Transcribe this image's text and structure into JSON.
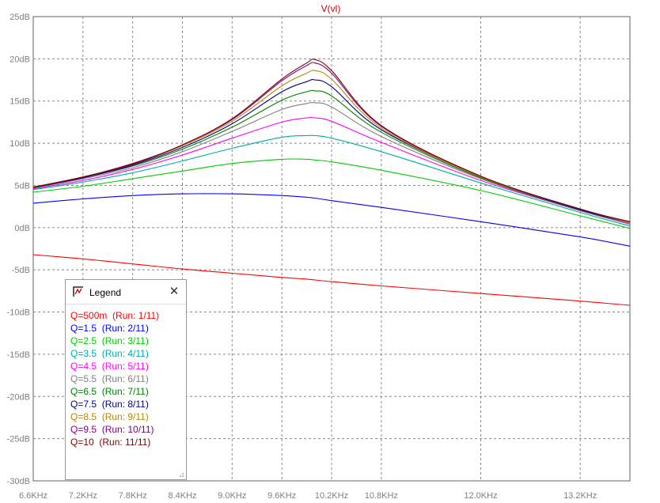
{
  "window_title": "V(vl)",
  "chart_data": {
    "type": "line",
    "title": "V(vl)",
    "xlabel": "",
    "ylabel": "",
    "x_unit": "Hz",
    "y_unit": "dB",
    "xlim": [
      6600,
      13800
    ],
    "ylim": [
      -30,
      25
    ],
    "grid": true,
    "x_ticks": [
      6600,
      7200,
      7800,
      8400,
      9000,
      9600,
      10200,
      10800,
      12000,
      13200
    ],
    "x_tick_labels": [
      "6.6KHz",
      "7.2KHz",
      "7.8KHz",
      "8.4KHz",
      "9.0KHz",
      "9.6KHz",
      "10.2KHz",
      "10.8KHz",
      "12.0KHz",
      "13.2KHz"
    ],
    "y_ticks": [
      25,
      20,
      15,
      10,
      5,
      0,
      -5,
      -10,
      -15,
      -20,
      -25,
      -30
    ],
    "y_tick_labels": [
      "25dB",
      "20dB",
      "15dB",
      "10dB",
      "5dB",
      "0dB",
      "-5dB",
      "-10dB",
      "-15dB",
      "-20dB",
      "-25dB",
      "-30dB"
    ],
    "x": [
      6600,
      7200,
      7800,
      8400,
      9000,
      9600,
      9900,
      10000,
      10200,
      10800,
      12000,
      13200,
      13800
    ],
    "series": [
      {
        "name": "Q=500m",
        "run": "(Run: 1/11)",
        "color": "#ff0000",
        "values": [
          -3.2,
          -3.7,
          -4.3,
          -4.9,
          -5.4,
          -5.9,
          -6.1,
          -6.2,
          -6.4,
          -6.9,
          -7.8,
          -8.7,
          -9.2
        ]
      },
      {
        "name": "Q=1.5",
        "run": "(Run: 2/11)",
        "color": "#0000ff",
        "values": [
          2.9,
          3.4,
          3.8,
          4.0,
          4.0,
          3.8,
          3.6,
          3.5,
          3.2,
          2.4,
          0.7,
          -1.1,
          -2.2
        ]
      },
      {
        "name": "Q=2.5",
        "run": "(Run: 3/11)",
        "color": "#00cc00",
        "values": [
          4.2,
          4.9,
          5.8,
          6.7,
          7.6,
          8.1,
          8.1,
          8.0,
          7.8,
          6.8,
          4.4,
          1.4,
          -0.1
        ]
      },
      {
        "name": "Q=3.5",
        "run": "(Run: 4/11)",
        "color": "#00aaaa",
        "values": [
          4.5,
          5.4,
          6.5,
          7.9,
          9.4,
          10.7,
          10.9,
          10.9,
          10.6,
          9.0,
          5.3,
          1.8,
          0.2
        ]
      },
      {
        "name": "Q=4.5",
        "run": "(Run: 5/11)",
        "color": "#ff00ff",
        "values": [
          4.6,
          5.6,
          6.9,
          8.6,
          10.6,
          12.5,
          13.0,
          13.0,
          12.6,
          10.1,
          5.6,
          2.0,
          0.4
        ]
      },
      {
        "name": "Q=5.5",
        "run": "(Run: 6/11)",
        "color": "#808080",
        "values": [
          4.7,
          5.8,
          7.1,
          9.0,
          11.4,
          14.0,
          14.7,
          14.8,
          14.3,
          10.8,
          5.8,
          2.0,
          0.5
        ]
      },
      {
        "name": "Q=6.5",
        "run": "(Run: 7/11)",
        "color": "#008000",
        "values": [
          4.7,
          5.9,
          7.3,
          9.3,
          11.9,
          15.1,
          16.1,
          16.2,
          15.6,
          11.3,
          5.9,
          2.1,
          0.6
        ]
      },
      {
        "name": "Q=7.5",
        "run": "(Run: 8/11)",
        "color": "#000080",
        "values": [
          4.8,
          5.9,
          7.4,
          9.5,
          12.3,
          16.1,
          17.3,
          17.5,
          16.7,
          11.6,
          6.0,
          2.1,
          0.6
        ]
      },
      {
        "name": "Q=8.5",
        "run": "(Run: 9/11)",
        "color": "#b8860b",
        "values": [
          4.8,
          6.0,
          7.5,
          9.7,
          12.6,
          16.8,
          18.3,
          18.6,
          17.6,
          11.8,
          6.0,
          2.2,
          0.6
        ]
      },
      {
        "name": "Q=9.5",
        "run": "(Run: 10/11)",
        "color": "#800080",
        "values": [
          4.8,
          6.0,
          7.5,
          9.8,
          12.8,
          17.4,
          19.2,
          19.5,
          18.3,
          12.0,
          6.1,
          2.2,
          0.7
        ]
      },
      {
        "name": "Q=10",
        "run": "(Run: 11/11)",
        "color": "#800000",
        "values": [
          4.8,
          6.0,
          7.6,
          9.8,
          12.9,
          17.6,
          19.5,
          19.9,
          18.6,
          12.1,
          6.1,
          2.2,
          0.7
        ]
      }
    ]
  },
  "legend": {
    "title": "Legend",
    "close_glyph": "✕"
  }
}
